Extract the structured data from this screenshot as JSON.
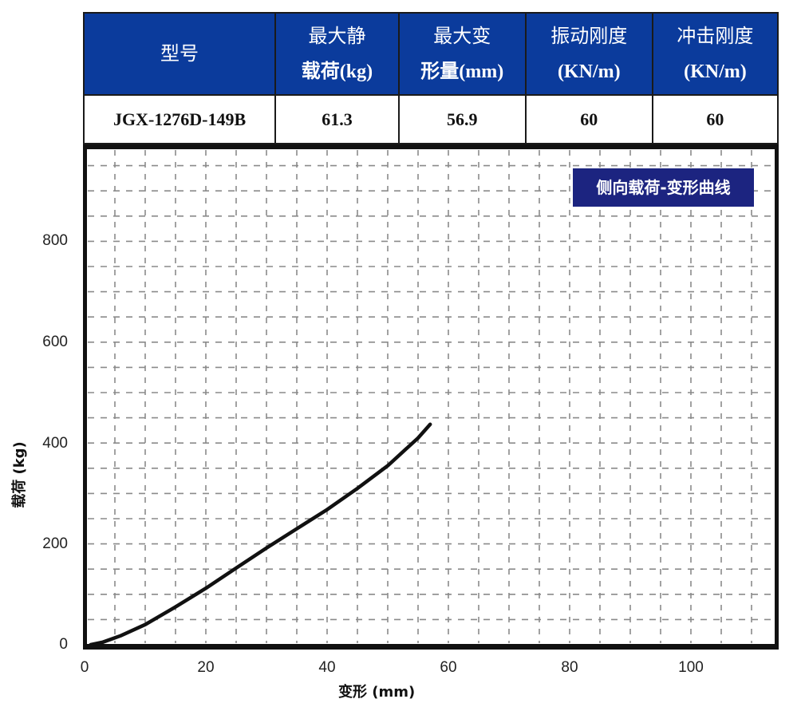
{
  "spec_table": {
    "headers": [
      {
        "line1": "型号",
        "line2": ""
      },
      {
        "line1": "最大静",
        "line2": "载荷(kg)"
      },
      {
        "line1": "最大变",
        "line2": "形量(mm)"
      },
      {
        "line1": "振动刚度",
        "line2": "(KN/m)"
      },
      {
        "line1": "冲击刚度",
        "line2": "(KN/m)"
      }
    ],
    "row": [
      "JGX-1276D-149B",
      "61.3",
      "56.9",
      "60",
      "60"
    ],
    "header_bg": "#0b3b9c"
  },
  "chart": {
    "badge": "侧向载荷-变形曲线",
    "badge_bg": "#1c2480",
    "xlabel": "变形 (mm)",
    "ylabel": "载荷 (kg)",
    "x_ticks": [
      "0",
      "20",
      "40",
      "60",
      "80",
      "100"
    ],
    "y_ticks": [
      "0",
      "200",
      "400",
      "600",
      "800"
    ]
  },
  "chart_data": {
    "type": "line",
    "title": "侧向载荷-变形曲线",
    "xlabel": "变形 (mm)",
    "ylabel": "载荷 (kg)",
    "xlim": [
      0,
      114
    ],
    "ylim": [
      0,
      970
    ],
    "x_ticks": [
      0,
      20,
      40,
      60,
      80,
      100
    ],
    "y_ticks": [
      0,
      200,
      400,
      600,
      800
    ],
    "grid": true,
    "legend": null,
    "series": [
      {
        "name": "侧向载荷-变形",
        "x": [
          1,
          3,
          6,
          10,
          15,
          20,
          25,
          30,
          35,
          40,
          45,
          50,
          55,
          57
        ],
        "y": [
          0,
          5,
          18,
          40,
          75,
          112,
          152,
          192,
          230,
          268,
          310,
          355,
          410,
          437
        ]
      }
    ]
  }
}
